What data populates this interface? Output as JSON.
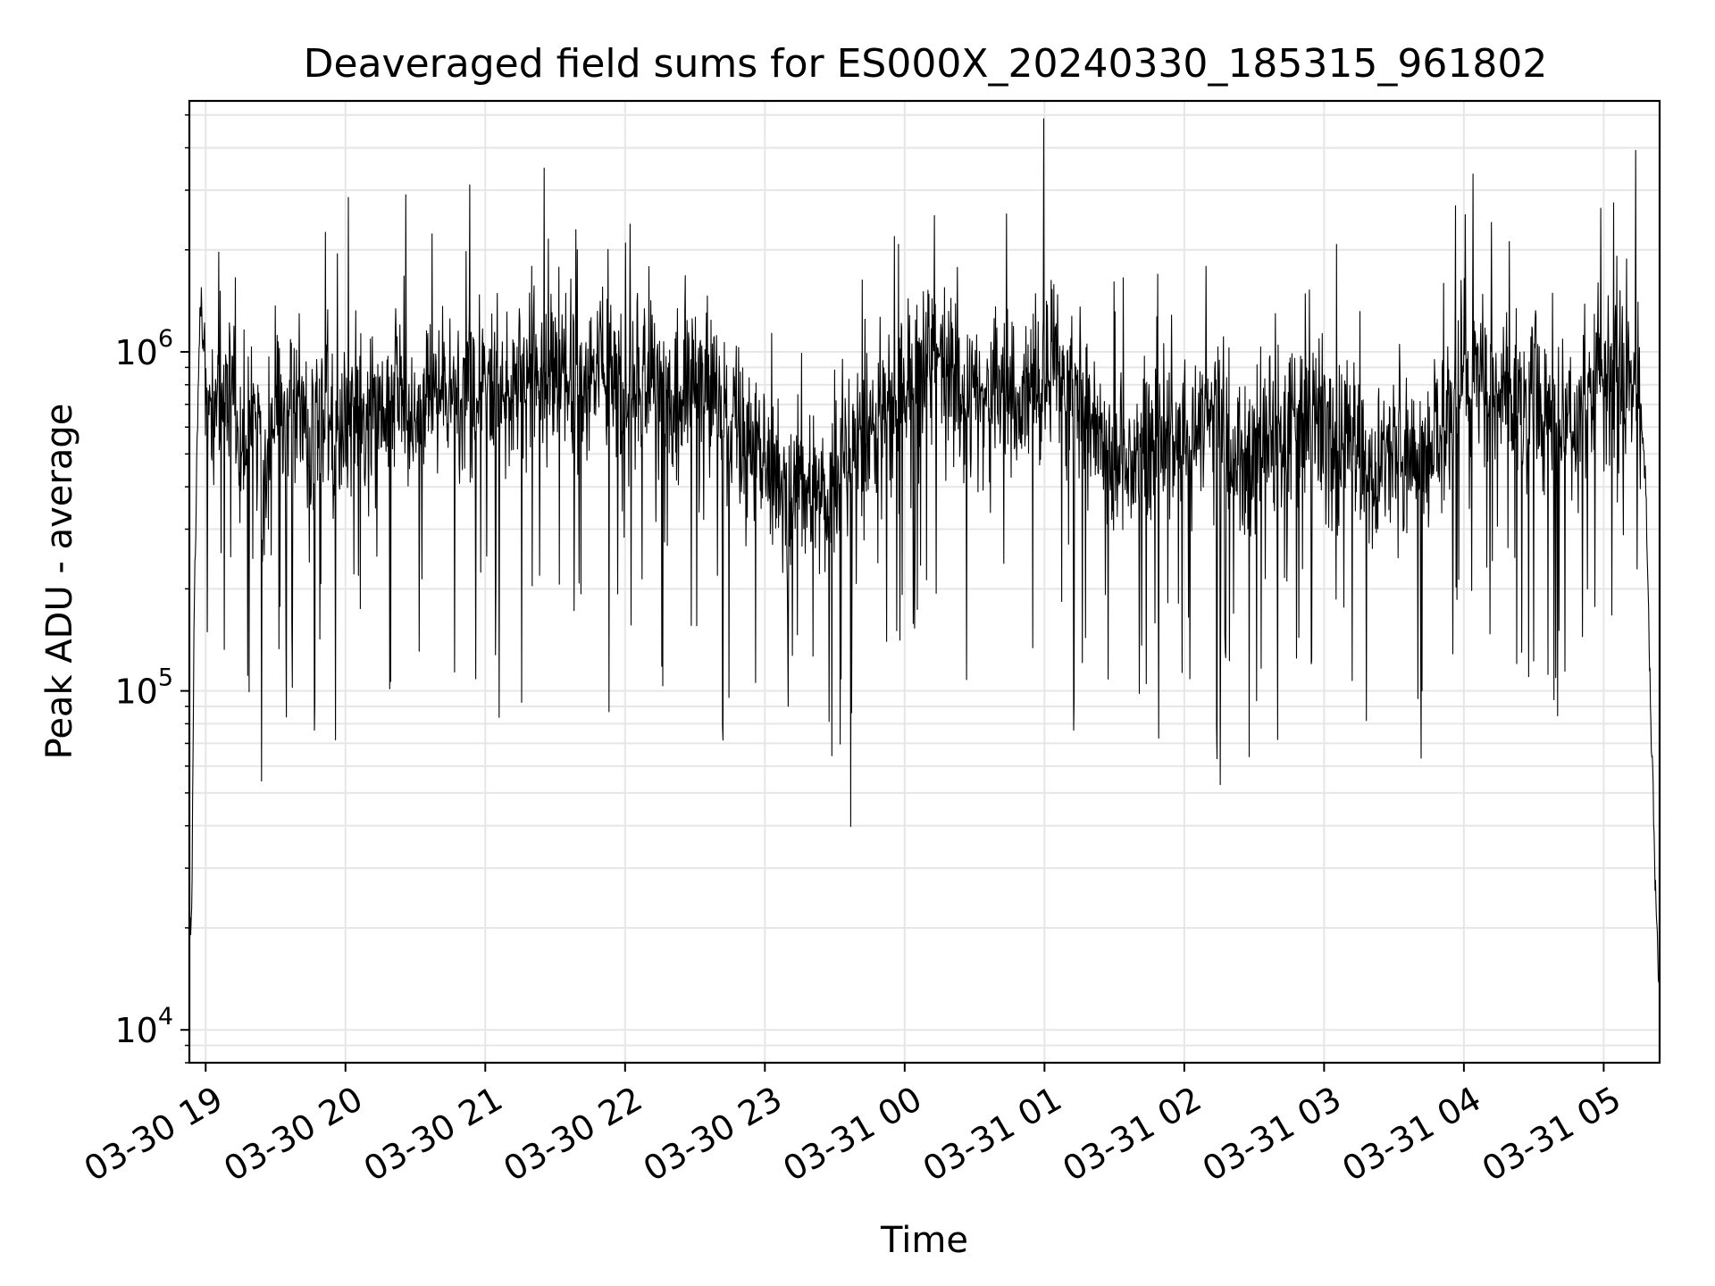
{
  "chart_data": {
    "type": "line",
    "title": "Deaveraged field sums for ES000X_20240330_185315_961802",
    "xlabel": "Time",
    "ylabel": "Peak ADU - average",
    "yscale": "log",
    "ylim": [
      8000,
      5500000
    ],
    "xlim": [
      "2024-03-30 18:53",
      "2024-03-31 05:24"
    ],
    "grid": true,
    "line_color": "#000000",
    "grid_color": "#e6e6e6",
    "x_ticks": [
      {
        "value": "2024-03-30 19:00",
        "label": "03-30 19"
      },
      {
        "value": "2024-03-30 20:00",
        "label": "03-30 20"
      },
      {
        "value": "2024-03-30 21:00",
        "label": "03-30 21"
      },
      {
        "value": "2024-03-30 22:00",
        "label": "03-30 22"
      },
      {
        "value": "2024-03-30 23:00",
        "label": "03-30 23"
      },
      {
        "value": "2024-03-31 00:00",
        "label": "03-31 00"
      },
      {
        "value": "2024-03-31 01:00",
        "label": "03-31 01"
      },
      {
        "value": "2024-03-31 02:00",
        "label": "03-31 02"
      },
      {
        "value": "2024-03-31 03:00",
        "label": "03-31 03"
      },
      {
        "value": "2024-03-31 04:00",
        "label": "03-31 04"
      },
      {
        "value": "2024-03-31 05:00",
        "label": "03-31 05"
      }
    ],
    "y_ticks": [
      {
        "value": 10000,
        "base": "10",
        "exp": "4"
      },
      {
        "value": 100000,
        "base": "10",
        "exp": "5"
      },
      {
        "value": 1000000,
        "base": "10",
        "exp": "6"
      }
    ],
    "series": [
      {
        "x": [
          "2024-03-30 18:53",
          "2024-03-30 18:54",
          "2024-03-30 18:55",
          "2024-03-30 18:56",
          "2024-03-30 18:57",
          "2024-03-30 18:58",
          "2024-03-30 19:00",
          "2024-03-30 19:05",
          "2024-03-30 19:10",
          "2024-03-30 19:15",
          "2024-03-30 19:20",
          "2024-03-30 19:25",
          "2024-03-30 19:30",
          "2024-03-30 19:35",
          "2024-03-30 19:40",
          "2024-03-30 19:45",
          "2024-03-30 19:50",
          "2024-03-30 19:55",
          "2024-03-30 20:00",
          "2024-03-30 20:10",
          "2024-03-30 20:20",
          "2024-03-30 20:30",
          "2024-03-30 20:40",
          "2024-03-30 20:50",
          "2024-03-30 21:00",
          "2024-03-30 21:10",
          "2024-03-30 21:20",
          "2024-03-30 21:30",
          "2024-03-30 21:40",
          "2024-03-30 21:50",
          "2024-03-30 22:00",
          "2024-03-30 22:10",
          "2024-03-30 22:20",
          "2024-03-30 22:30",
          "2024-03-30 22:40",
          "2024-03-30 22:50",
          "2024-03-30 23:00",
          "2024-03-30 23:10",
          "2024-03-30 23:20",
          "2024-03-30 23:30",
          "2024-03-30 23:40",
          "2024-03-30 23:50",
          "2024-03-31 00:00",
          "2024-03-31 00:10",
          "2024-03-31 00:20",
          "2024-03-31 00:30",
          "2024-03-31 00:40",
          "2024-03-31 00:50",
          "2024-03-31 01:00",
          "2024-03-31 01:10",
          "2024-03-31 01:20",
          "2024-03-31 01:30",
          "2024-03-31 01:40",
          "2024-03-31 01:50",
          "2024-03-31 02:00",
          "2024-03-31 02:10",
          "2024-03-31 02:20",
          "2024-03-31 02:30",
          "2024-03-31 02:40",
          "2024-03-31 02:50",
          "2024-03-31 03:00",
          "2024-03-31 03:10",
          "2024-03-31 03:20",
          "2024-03-31 03:30",
          "2024-03-31 03:40",
          "2024-03-31 03:50",
          "2024-03-31 04:00",
          "2024-03-31 04:10",
          "2024-03-31 04:20",
          "2024-03-31 04:30",
          "2024-03-31 04:40",
          "2024-03-31 04:50",
          "2024-03-31 05:00",
          "2024-03-31 05:10",
          "2024-03-31 05:15",
          "2024-03-31 05:18",
          "2024-03-31 05:20",
          "2024-03-31 05:22",
          "2024-03-31 05:24"
        ],
        "y": [
          20000,
          22000,
          150000,
          400000,
          900000,
          1500000,
          700000,
          600000,
          800000,
          500000,
          700000,
          400000,
          800000,
          600000,
          700000,
          500000,
          800000,
          600000,
          700000,
          650000,
          750000,
          600000,
          800000,
          700000,
          800000,
          700000,
          900000,
          900000,
          800000,
          900000,
          800000,
          900000,
          700000,
          800000,
          700000,
          550000,
          500000,
          400000,
          350000,
          400000,
          500000,
          600000,
          800000,
          900000,
          800000,
          700000,
          800000,
          700000,
          900000,
          800000,
          600000,
          450000,
          500000,
          600000,
          550000,
          650000,
          500000,
          450000,
          550000,
          650000,
          600000,
          550000,
          450000,
          500000,
          500000,
          550000,
          900000,
          800000,
          700000,
          650000,
          600000,
          650000,
          800000,
          900000,
          800000,
          400000,
          100000,
          30000,
          12000
        ]
      }
    ]
  }
}
